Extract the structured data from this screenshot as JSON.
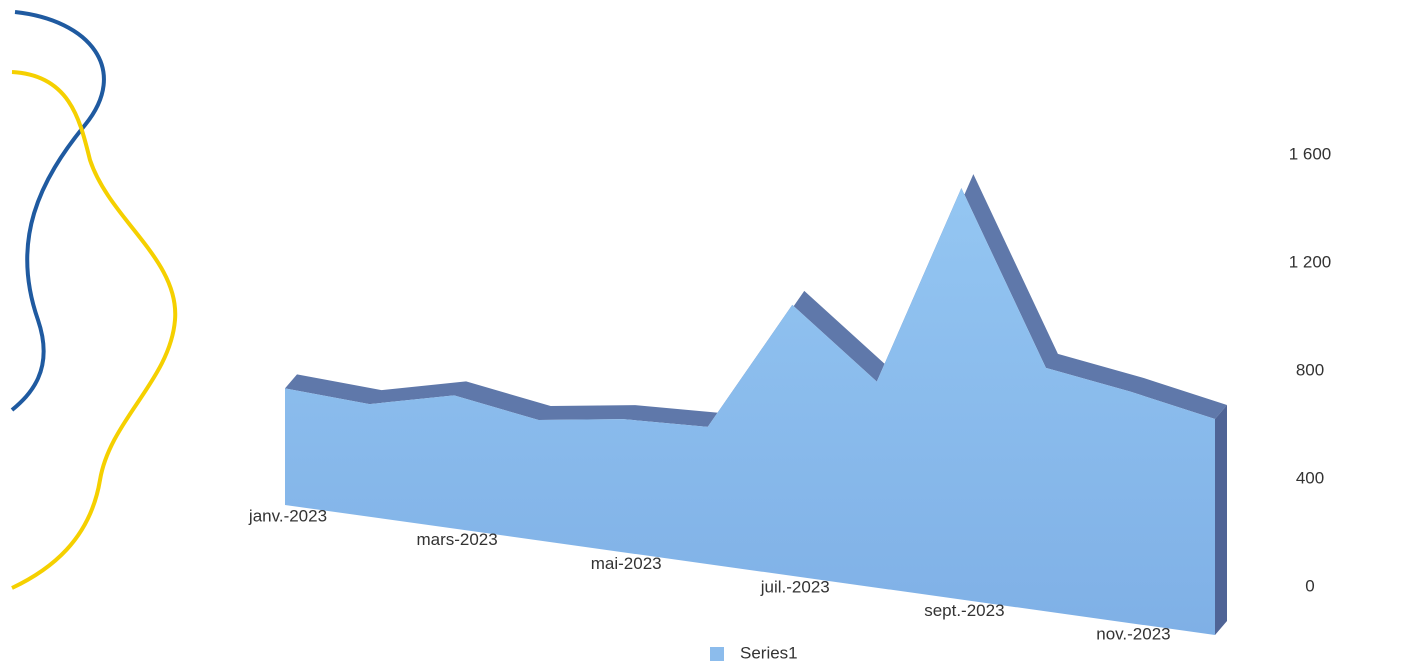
{
  "chart_data": {
    "type": "area3d",
    "categories": [
      "janv.-2023",
      null,
      "mars-2023",
      null,
      "mai-2023",
      null,
      "juil.-2023",
      null,
      "sept.-2023",
      null,
      "nov.-2023",
      null
    ],
    "series": [
      {
        "name": "Series1",
        "color": "#8cbcec",
        "values": [
          600,
          560,
          640,
          560,
          600,
          600,
          1150,
          850,
          1650,
          950,
          880,
          800
        ]
      }
    ],
    "ylim": [
      0,
      1600
    ],
    "yticks": [
      0,
      400,
      800,
      {
        "value": 1200,
        "label": "1 200"
      },
      {
        "value": 1600,
        "label": "1 600"
      }
    ],
    "legend": "bottom"
  }
}
